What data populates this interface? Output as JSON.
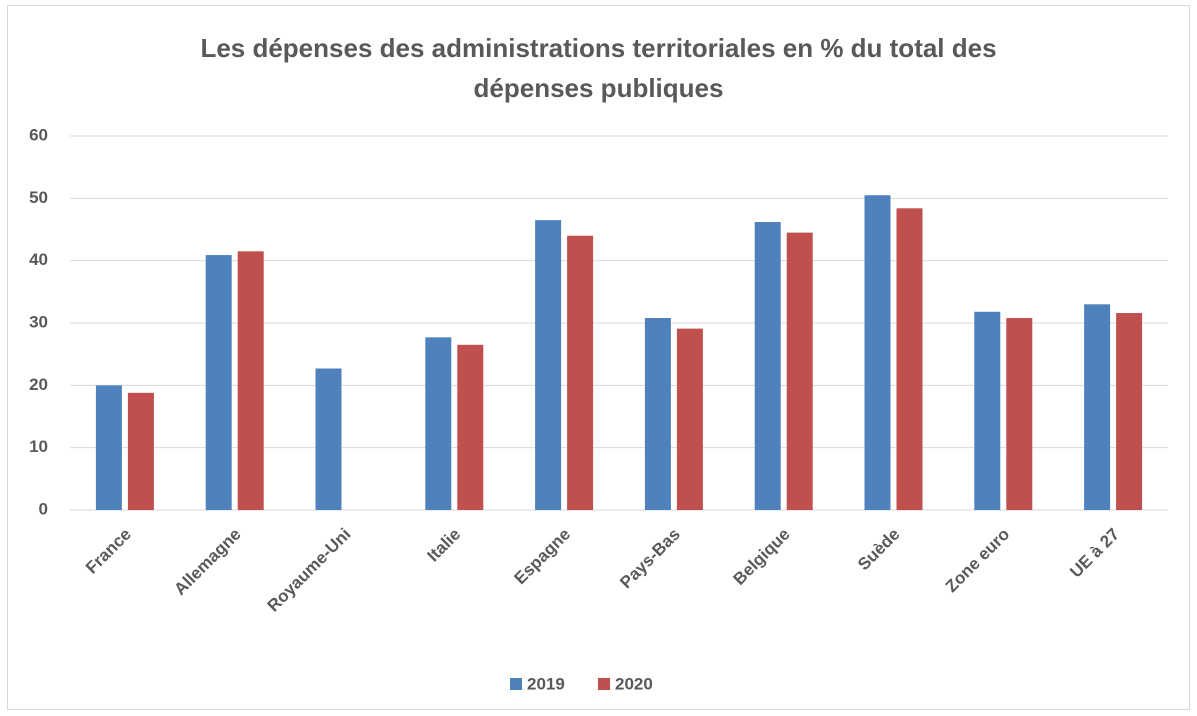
{
  "chart_data": {
    "type": "bar",
    "title": "Les dépenses des administrations territoriales en % du total des dépenses publiques",
    "categories": [
      "France",
      "Allemagne",
      "Royaume-Uni",
      "Italie",
      "Espagne",
      "Pays-Bas",
      "Belgique",
      "Suède",
      "Zone euro",
      "UE à 27"
    ],
    "series": [
      {
        "name": "2019",
        "color": "#4f81bd",
        "values": [
          20.0,
          40.9,
          22.7,
          27.7,
          46.5,
          30.8,
          46.2,
          50.5,
          31.8,
          33.0
        ]
      },
      {
        "name": "2020",
        "color": "#c0504d",
        "values": [
          18.8,
          41.5,
          null,
          26.5,
          44.0,
          29.1,
          44.5,
          48.4,
          30.8,
          31.6
        ]
      }
    ],
    "ylim": [
      0,
      60
    ],
    "yticks": [
      0,
      10,
      20,
      30,
      40,
      50,
      60
    ],
    "grid": true,
    "legend": "bottom"
  }
}
